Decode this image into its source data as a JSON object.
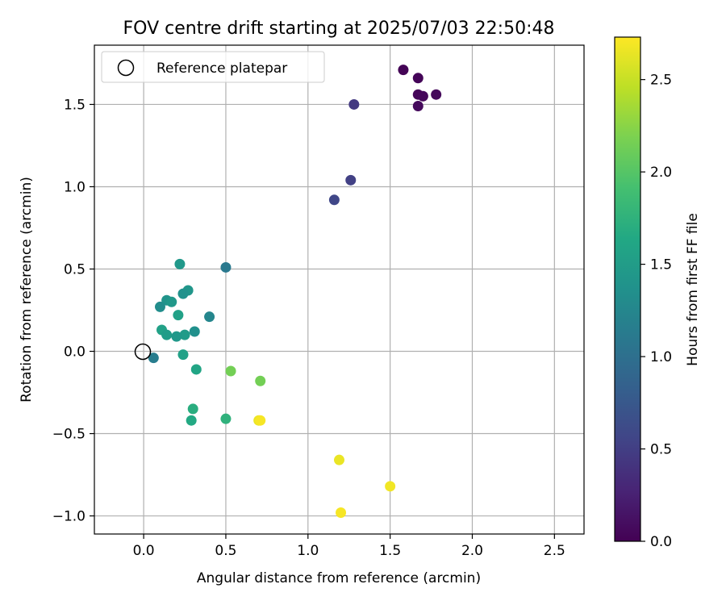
{
  "chart_data": {
    "type": "scatter",
    "title": "FOV centre drift starting at 2025/07/03 22:50:48",
    "xlabel": "Angular distance from reference (arcmin)",
    "ylabel": "Rotation from reference (arcmin)",
    "xlim": [
      -0.3,
      2.68
    ],
    "ylim": [
      -1.11,
      1.86
    ],
    "xticks": [
      0.0,
      0.5,
      1.0,
      1.5,
      2.0,
      2.5
    ],
    "yticks": [
      -1.0,
      -0.5,
      0.0,
      0.5,
      1.0,
      1.5
    ],
    "xtick_labels": [
      "0.0",
      "0.5",
      "1.0",
      "1.5",
      "2.0",
      "2.5"
    ],
    "ytick_labels": [
      "−1.0",
      "−0.5",
      "0.0",
      "0.5",
      "1.0",
      "1.5"
    ],
    "grid": true,
    "legend": {
      "position": "top-left",
      "entries": [
        {
          "label": "Reference platepar",
          "marker": "open-circle"
        }
      ]
    },
    "reference_point": {
      "label": "Reference platepar",
      "x": 0.0,
      "y": 0.0
    },
    "colorbar": {
      "label": "Hours from first FF file",
      "colormap": "viridis",
      "range": [
        0.0,
        2.73
      ],
      "ticks": [
        0.0,
        0.5,
        1.0,
        1.5,
        2.0,
        2.5
      ],
      "tick_labels": [
        "0.0",
        "0.5",
        "1.0",
        "1.5",
        "2.0",
        "2.5"
      ]
    },
    "points": [
      {
        "x": 1.58,
        "y": 1.71,
        "c": 0.02
      },
      {
        "x": 1.67,
        "y": 1.66,
        "c": 0.03
      },
      {
        "x": 1.67,
        "y": 1.56,
        "c": 0.04
      },
      {
        "x": 1.7,
        "y": 1.55,
        "c": 0.05
      },
      {
        "x": 1.78,
        "y": 1.56,
        "c": 0.06
      },
      {
        "x": 1.67,
        "y": 1.49,
        "c": 0.07
      },
      {
        "x": 1.28,
        "y": 1.5,
        "c": 0.45
      },
      {
        "x": 1.26,
        "y": 1.04,
        "c": 0.52
      },
      {
        "x": 1.16,
        "y": 0.92,
        "c": 0.58
      },
      {
        "x": 0.22,
        "y": 0.53,
        "c": 1.45
      },
      {
        "x": 0.5,
        "y": 0.51,
        "c": 1.1
      },
      {
        "x": 0.27,
        "y": 0.37,
        "c": 1.42
      },
      {
        "x": 0.24,
        "y": 0.35,
        "c": 1.38
      },
      {
        "x": 0.14,
        "y": 0.31,
        "c": 1.4
      },
      {
        "x": 0.17,
        "y": 0.3,
        "c": 1.45
      },
      {
        "x": 0.1,
        "y": 0.27,
        "c": 1.32
      },
      {
        "x": 0.21,
        "y": 0.22,
        "c": 1.55
      },
      {
        "x": 0.4,
        "y": 0.21,
        "c": 1.25
      },
      {
        "x": 0.11,
        "y": 0.13,
        "c": 1.55
      },
      {
        "x": 0.31,
        "y": 0.12,
        "c": 1.35
      },
      {
        "x": 0.14,
        "y": 0.1,
        "c": 1.5
      },
      {
        "x": 0.25,
        "y": 0.1,
        "c": 1.48
      },
      {
        "x": 0.2,
        "y": 0.09,
        "c": 1.45
      },
      {
        "x": 0.06,
        "y": -0.04,
        "c": 1.15
      },
      {
        "x": 0.24,
        "y": -0.02,
        "c": 1.55
      },
      {
        "x": 0.32,
        "y": -0.11,
        "c": 1.6
      },
      {
        "x": 0.53,
        "y": -0.12,
        "c": 2.15
      },
      {
        "x": 0.71,
        "y": -0.18,
        "c": 2.15
      },
      {
        "x": 0.3,
        "y": -0.35,
        "c": 1.7
      },
      {
        "x": 0.29,
        "y": -0.42,
        "c": 1.65
      },
      {
        "x": 0.5,
        "y": -0.41,
        "c": 1.75
      },
      {
        "x": 0.7,
        "y": -0.42,
        "c": 2.65
      },
      {
        "x": 0.71,
        "y": -0.42,
        "c": 2.7
      },
      {
        "x": 1.19,
        "y": -0.66,
        "c": 2.65
      },
      {
        "x": 1.5,
        "y": -0.82,
        "c": 2.68
      },
      {
        "x": 1.2,
        "y": -0.98,
        "c": 2.7
      }
    ]
  }
}
